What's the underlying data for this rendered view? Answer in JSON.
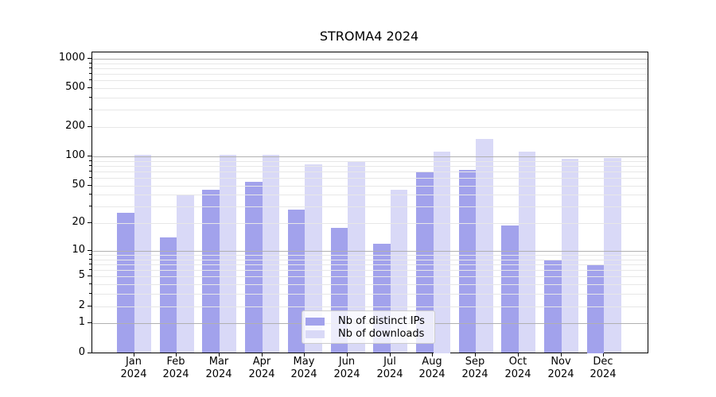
{
  "chart_data": {
    "type": "bar",
    "title": "STROMA4 2024",
    "months": [
      "Jan",
      "Feb",
      "Mar",
      "Apr",
      "May",
      "Jun",
      "Jul",
      "Aug",
      "Sep",
      "Oct",
      "Nov",
      "Dec"
    ],
    "year_label": "2024",
    "categories": [
      "Jan 2024",
      "Feb 2024",
      "Mar 2024",
      "Apr 2024",
      "May 2024",
      "Jun 2024",
      "Jul 2024",
      "Aug 2024",
      "Sep 2024",
      "Oct 2024",
      "Nov 2024",
      "Dec 2024"
    ],
    "series": [
      {
        "name": "Nb of distinct IPs",
        "color": "#a2a2ec",
        "values": [
          26,
          14,
          45,
          55,
          28,
          18,
          12,
          70,
          72,
          19,
          8,
          7
        ]
      },
      {
        "name": "Nb of downloads",
        "color": "#d9d9f7",
        "values": [
          103,
          40,
          103,
          103,
          83,
          90,
          45,
          113,
          150,
          111,
          94,
          96
        ]
      }
    ],
    "xlabel": "",
    "ylabel": "",
    "y_axis": {
      "scale": "log10(value+1)",
      "tick_values": [
        0,
        1,
        2,
        5,
        10,
        20,
        50,
        100,
        200,
        500,
        1000
      ],
      "ylim": [
        0,
        1160
      ]
    },
    "grid": {
      "shown": true,
      "drawn_above_bars": true,
      "major_values": [
        1,
        10,
        100,
        1000
      ],
      "minor_values": [
        2,
        3,
        4,
        5,
        6,
        7,
        8,
        9,
        20,
        30,
        40,
        50,
        60,
        70,
        80,
        90,
        200,
        300,
        400,
        500,
        600,
        700,
        800,
        900
      ],
      "major_color": "#b0b0b0",
      "minor_color": "#e7e7e7"
    },
    "legend": {
      "position": "lower center",
      "entries": [
        "Nb of distinct IPs",
        "Nb of downloads"
      ]
    },
    "colors": {
      "background": "#ffffff",
      "spine": "#000000",
      "text": "#000000"
    }
  }
}
